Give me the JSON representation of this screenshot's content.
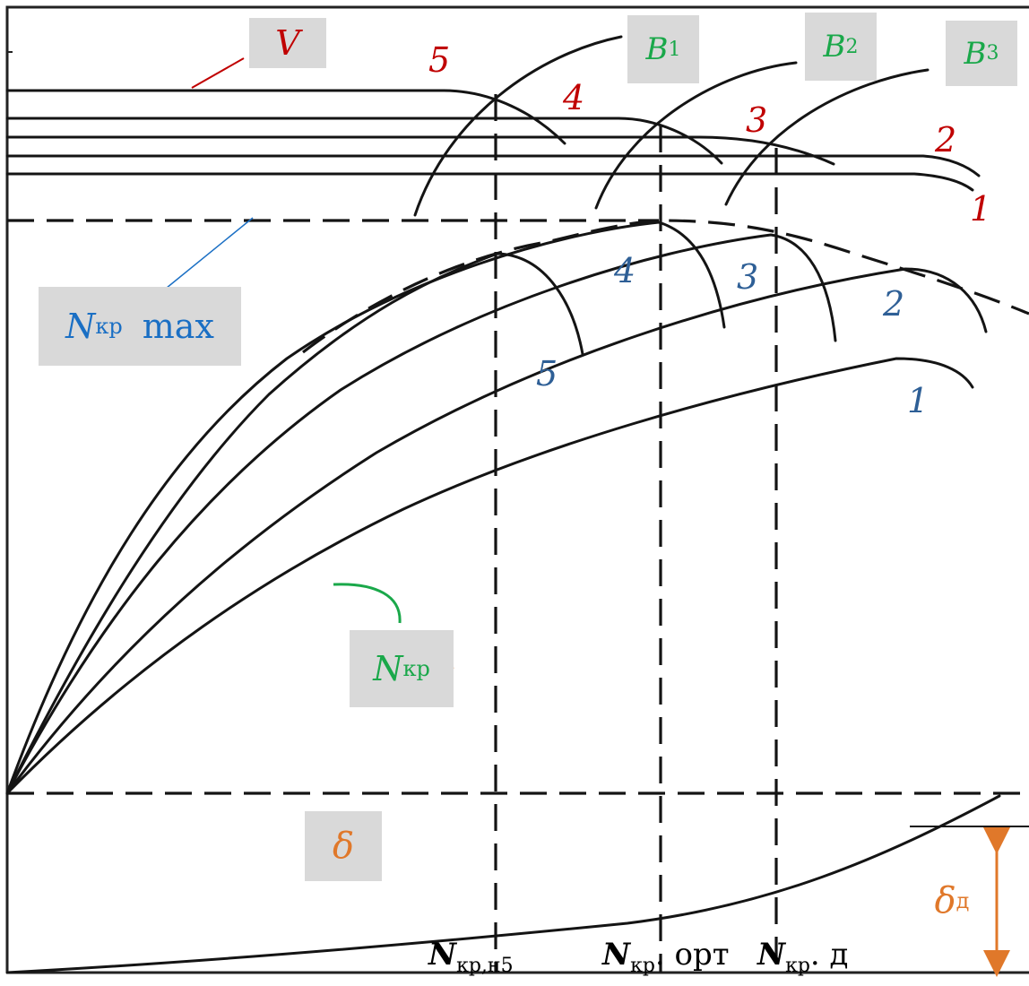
{
  "colors": {
    "speed": "#c00000",
    "power": "#2e5f96",
    "nkr_max": "#1a6fc4",
    "nkr": "#1aa84a",
    "b_label": "#1aa84a",
    "slip": "#e0782a",
    "curves": "#141414",
    "label_bg": "#d9d9d9"
  },
  "labels": {
    "speed": "V",
    "b1": {
      "main": "B",
      "sub": "1"
    },
    "b2": {
      "main": "B",
      "sub": "2"
    },
    "b3": {
      "main": "B",
      "sub": "3"
    },
    "nkr_max": {
      "main": "N",
      "sub": "кр",
      "suffix": "max"
    },
    "nkr": {
      "main": "N",
      "sub": "кр"
    },
    "slip": "δ",
    "slip_d": {
      "main": "δ",
      "sub": "д"
    }
  },
  "gear_numbers_speed": [
    "5",
    "4",
    "3",
    "2",
    "1"
  ],
  "gear_numbers_power": [
    "4",
    "3",
    "2",
    "5",
    "1"
  ],
  "x_axis_labels": [
    {
      "main": "N",
      "sub": "кр,н5",
      "tail": ""
    },
    {
      "main": "N",
      "sub": "кр",
      "tail": ". орт"
    },
    {
      "main": "N",
      "sub": "кр",
      "tail": ". д"
    }
  ]
}
